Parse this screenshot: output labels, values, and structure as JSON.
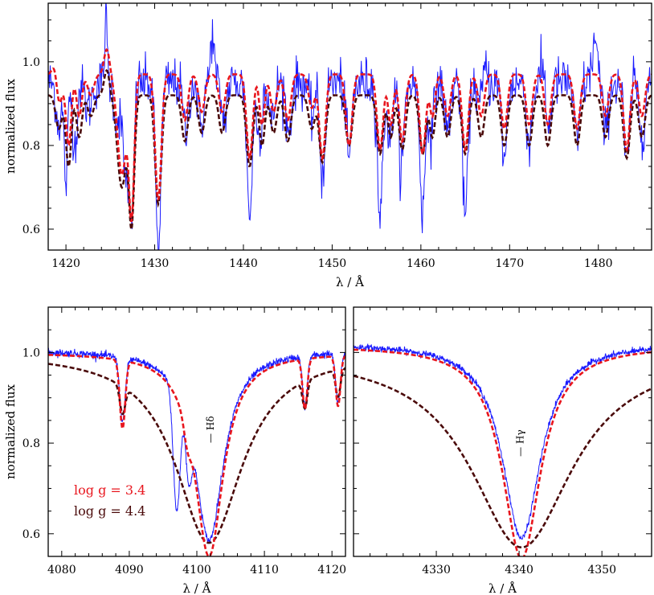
{
  "chart_data": [
    {
      "type": "line",
      "xlabel": "λ / Å",
      "ylabel": "normalized flux",
      "xlim": [
        1418,
        1486
      ],
      "ylim": [
        0.55,
        1.14
      ],
      "xticks": [
        1420,
        1430,
        1440,
        1450,
        1460,
        1470,
        1480
      ],
      "yticks": [
        0.6,
        0.8,
        1.0
      ],
      "ytick_labels": [
        "0.6",
        "0.8",
        "1.0"
      ],
      "series": [
        {
          "style": "observation",
          "color": "#1a1aff",
          "continuum": 0.95,
          "noise": 0.03,
          "lines": [
            [
              1419.2,
              0.1,
              0.3
            ],
            [
              1420.0,
              0.24,
              0.2
            ],
            [
              1421.0,
              0.15,
              0.25
            ],
            [
              1422.5,
              0.06,
              0.4
            ],
            [
              1425.7,
              0.09,
              0.25
            ],
            [
              1426.7,
              0.22,
              0.35
            ],
            [
              1427.4,
              0.33,
              0.25
            ],
            [
              1430.4,
              0.39,
              0.3
            ],
            [
              1433.5,
              0.12,
              0.3
            ],
            [
              1435.2,
              0.1,
              0.3
            ],
            [
              1437.8,
              0.09,
              0.3
            ],
            [
              1440.7,
              0.32,
              0.3
            ],
            [
              1441.8,
              0.14,
              0.25
            ],
            [
              1443.2,
              0.1,
              0.3
            ],
            [
              1445.1,
              0.12,
              0.3
            ],
            [
              1447.7,
              0.08,
              0.3
            ],
            [
              1448.9,
              0.23,
              0.3
            ],
            [
              1451.9,
              0.18,
              0.3
            ],
            [
              1455.4,
              0.32,
              0.3
            ],
            [
              1456.5,
              0.15,
              0.25
            ],
            [
              1457.8,
              0.2,
              0.3
            ],
            [
              1460.2,
              0.31,
              0.3
            ],
            [
              1461.2,
              0.13,
              0.25
            ],
            [
              1463.0,
              0.12,
              0.3
            ],
            [
              1465.0,
              0.32,
              0.3
            ],
            [
              1466.8,
              0.12,
              0.3
            ],
            [
              1469.4,
              0.18,
              0.3
            ],
            [
              1472.2,
              0.14,
              0.3
            ],
            [
              1474.3,
              0.15,
              0.3
            ],
            [
              1477.6,
              0.15,
              0.3
            ],
            [
              1480.8,
              0.12,
              0.3
            ],
            [
              1483.2,
              0.2,
              0.3
            ],
            [
              1484.9,
              0.12,
              0.3
            ]
          ],
          "peaks": [
            [
              1424.5,
              0.15,
              0.15
            ],
            [
              1436.5,
              0.12,
              0.2
            ],
            [
              1467.0,
              0.1,
              0.3
            ],
            [
              1474.0,
              0.08,
              0.3
            ],
            [
              1479.6,
              0.1,
              0.3
            ]
          ]
        },
        {
          "name": "log g = 3.4",
          "style": "dashed",
          "color": "#e8161e",
          "continuum": 0.97,
          "lines": [
            [
              1419.2,
              0.08,
              0.35
            ],
            [
              1420.3,
              0.17,
              0.3
            ],
            [
              1421.5,
              0.1,
              0.3
            ],
            [
              1422.8,
              0.05,
              0.35
            ],
            [
              1426.3,
              0.24,
              0.5
            ],
            [
              1427.4,
              0.33,
              0.3
            ],
            [
              1430.4,
              0.3,
              0.35
            ],
            [
              1433.4,
              0.11,
              0.35
            ],
            [
              1435.3,
              0.09,
              0.35
            ],
            [
              1437.6,
              0.09,
              0.35
            ],
            [
              1440.7,
              0.2,
              0.35
            ],
            [
              1442.1,
              0.12,
              0.3
            ],
            [
              1443.4,
              0.09,
              0.35
            ],
            [
              1445.0,
              0.11,
              0.35
            ],
            [
              1447.7,
              0.08,
              0.35
            ],
            [
              1448.9,
              0.2,
              0.35
            ],
            [
              1451.9,
              0.17,
              0.35
            ],
            [
              1455.4,
              0.18,
              0.35
            ],
            [
              1456.6,
              0.12,
              0.3
            ],
            [
              1457.9,
              0.16,
              0.35
            ],
            [
              1460.2,
              0.19,
              0.35
            ],
            [
              1461.3,
              0.1,
              0.3
            ],
            [
              1463.0,
              0.1,
              0.35
            ],
            [
              1465.0,
              0.18,
              0.35
            ],
            [
              1466.8,
              0.1,
              0.35
            ],
            [
              1469.4,
              0.13,
              0.35
            ],
            [
              1472.2,
              0.12,
              0.35
            ],
            [
              1474.3,
              0.12,
              0.35
            ],
            [
              1477.6,
              0.13,
              0.35
            ],
            [
              1480.8,
              0.1,
              0.35
            ],
            [
              1483.2,
              0.18,
              0.35
            ],
            [
              1484.9,
              0.1,
              0.35
            ]
          ],
          "peaks": [
            [
              1424.6,
              0.06,
              0.3
            ],
            [
              1418.8,
              0.04,
              0.3
            ]
          ]
        },
        {
          "name": "log g = 4.4",
          "style": "dashed",
          "color": "#4a0a0a",
          "continuum": 0.92,
          "lines": [
            [
              1419.2,
              0.08,
              0.35
            ],
            [
              1420.3,
              0.17,
              0.3
            ],
            [
              1421.5,
              0.1,
              0.3
            ],
            [
              1422.8,
              0.05,
              0.35
            ],
            [
              1426.3,
              0.22,
              0.5
            ],
            [
              1427.4,
              0.3,
              0.3
            ],
            [
              1430.4,
              0.26,
              0.35
            ],
            [
              1433.4,
              0.11,
              0.35
            ],
            [
              1435.3,
              0.09,
              0.35
            ],
            [
              1437.6,
              0.09,
              0.35
            ],
            [
              1440.7,
              0.17,
              0.35
            ],
            [
              1442.1,
              0.12,
              0.3
            ],
            [
              1443.4,
              0.09,
              0.35
            ],
            [
              1445.0,
              0.11,
              0.35
            ],
            [
              1447.7,
              0.08,
              0.35
            ],
            [
              1448.9,
              0.16,
              0.35
            ],
            [
              1451.9,
              0.12,
              0.35
            ],
            [
              1455.4,
              0.14,
              0.35
            ],
            [
              1456.6,
              0.1,
              0.3
            ],
            [
              1457.9,
              0.13,
              0.35
            ],
            [
              1460.2,
              0.14,
              0.35
            ],
            [
              1461.3,
              0.1,
              0.3
            ],
            [
              1463.0,
              0.1,
              0.35
            ],
            [
              1465.0,
              0.14,
              0.35
            ],
            [
              1466.8,
              0.1,
              0.35
            ],
            [
              1469.4,
              0.12,
              0.35
            ],
            [
              1472.2,
              0.12,
              0.35
            ],
            [
              1474.3,
              0.12,
              0.35
            ],
            [
              1477.6,
              0.12,
              0.35
            ],
            [
              1480.8,
              0.1,
              0.35
            ],
            [
              1483.2,
              0.15,
              0.35
            ],
            [
              1484.9,
              0.1,
              0.35
            ]
          ],
          "peaks": [
            [
              1424.6,
              0.06,
              0.3
            ]
          ]
        }
      ]
    },
    {
      "type": "line",
      "xlabel": "λ / Å",
      "ylabel": "normalized flux",
      "xlim": [
        4078,
        4122
      ],
      "ylim": [
        0.55,
        1.1
      ],
      "xticks": [
        4080,
        4090,
        4100,
        4110,
        4120
      ],
      "yticks": [
        0.6,
        0.8,
        1.0
      ],
      "ytick_labels": [
        "0.6",
        "0.8",
        "1.0"
      ],
      "line_id": {
        "label": "Hδ",
        "x": 4102.5,
        "y": 0.83
      },
      "legend": [
        {
          "text": "log g = 3.4",
          "color": "#e8161e"
        },
        {
          "text": "log g = 4.4",
          "color": "#4a0a0a"
        }
      ],
      "series": [
        {
          "style": "observation",
          "color": "#1a1aff",
          "continuum": 1.005,
          "noise": 0.007,
          "balmer": {
            "center": 4101.8,
            "depth": 0.42,
            "width": 2.6
          },
          "lines": [
            [
              4089.0,
              0.14,
              0.4
            ],
            [
              4097.0,
              0.26,
              0.5
            ],
            [
              4098.8,
              0.12,
              0.4
            ],
            [
              4116.0,
              0.11,
              0.35
            ],
            [
              4120.9,
              0.11,
              0.35
            ]
          ]
        },
        {
          "name": "log g = 3.4",
          "style": "dashed",
          "color": "#e8161e",
          "continuum": 1.0,
          "balmer": {
            "center": 4101.8,
            "depth": 0.45,
            "width": 2.6
          },
          "lines": [
            [
              4089.0,
              0.15,
              0.4
            ],
            [
              4098.6,
              0.04,
              0.5
            ],
            [
              4116.0,
              0.11,
              0.35
            ],
            [
              4120.9,
              0.11,
              0.35
            ]
          ]
        },
        {
          "name": "log g = 4.4",
          "style": "dashed",
          "color": "#4a0a0a",
          "continuum": 1.0,
          "balmer": {
            "center": 4101.8,
            "depth": 0.42,
            "width": 6.0
          },
          "lines": [
            [
              4089.0,
              0.06,
              0.4
            ],
            [
              4116.0,
              0.06,
              0.35
            ],
            [
              4120.9,
              0.06,
              0.35
            ]
          ]
        }
      ]
    },
    {
      "type": "line",
      "xlabel": "λ / Å",
      "xlim": [
        4320,
        4356
      ],
      "ylim": [
        0.55,
        1.1
      ],
      "xticks": [
        4330,
        4340,
        4350
      ],
      "yticks": [
        0.6,
        0.8,
        1.0
      ],
      "line_id": {
        "label": "Hγ",
        "x": 4340.5,
        "y": 0.8
      },
      "series": [
        {
          "style": "observation",
          "color": "#1a1aff",
          "continuum": 1.02,
          "noise": 0.006,
          "balmer": {
            "center": 4340.3,
            "depth": 0.43,
            "width": 2.8
          }
        },
        {
          "name": "log g = 3.4",
          "style": "dashed",
          "color": "#e8161e",
          "continuum": 1.015,
          "balmer": {
            "center": 4340.3,
            "depth": 0.47,
            "width": 2.8
          }
        },
        {
          "name": "log g = 4.4",
          "style": "dashed",
          "color": "#4a0a0a",
          "continuum": 1.0,
          "balmer": {
            "center": 4340.3,
            "depth": 0.43,
            "width": 7.5
          }
        }
      ]
    }
  ]
}
